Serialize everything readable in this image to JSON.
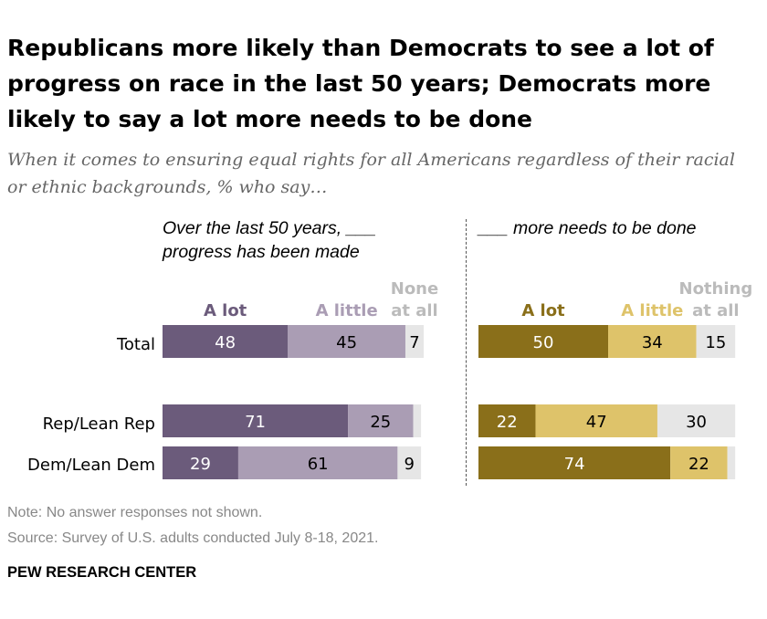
{
  "title": "Republicans more likely than Democrats to see a lot of progress on race in the last 50 years; Democrats more likely to say a lot more needs to be done",
  "subtitle": "When it comes to ensuring equal rights for all Americans regardless of their racial or ethnic backgrounds, % who say…",
  "note": "Note: No answer responses not shown.",
  "source": "Source: Survey of U.S. adults conducted July 8-18, 2021.",
  "brand": "PEW RESEARCH CENTER",
  "colors": {
    "left": [
      "#6b5b7b",
      "#aa9db4",
      "#e6e6e6"
    ],
    "right": [
      "#8a6f1a",
      "#dec36a",
      "#e6e6e6"
    ],
    "left_cat_text": [
      "#6b5b7b",
      "#aa9db4",
      "#bbbbbb"
    ],
    "right_cat_text": [
      "#8a6f1a",
      "#dec36a",
      "#bbbbbb"
    ]
  },
  "chart_data": [
    {
      "type": "bar",
      "orientation": "horizontal",
      "stacked": true,
      "title": "Over the last 50 years, ___ progress has been made",
      "title_lines": [
        "Over the last 50 years, ___",
        "progress has been made"
      ],
      "categories": [
        "Total",
        "Rep/Lean Rep",
        "Dem/Lean Dem"
      ],
      "series": [
        {
          "name": "A lot",
          "name_lines": [
            "A lot"
          ],
          "values": [
            48,
            71,
            29
          ]
        },
        {
          "name": "A little",
          "name_lines": [
            "A little"
          ],
          "values": [
            45,
            25,
            61
          ]
        },
        {
          "name": "None at all",
          "name_lines": [
            "None",
            "at all"
          ],
          "values": [
            7,
            3,
            9
          ]
        }
      ],
      "data_labels": [
        [
          "48",
          "71",
          "29"
        ],
        [
          "45",
          "25",
          "61"
        ],
        [
          "7",
          "",
          "9"
        ]
      ],
      "xlim": [
        0,
        100
      ]
    },
    {
      "type": "bar",
      "orientation": "horizontal",
      "stacked": true,
      "title": "___ more needs to be done",
      "title_lines": [
        "___ more needs to be done"
      ],
      "categories": [
        "Total",
        "Rep/Lean Rep",
        "Dem/Lean Dem"
      ],
      "series": [
        {
          "name": "A lot",
          "name_lines": [
            "A lot"
          ],
          "values": [
            50,
            22,
            74
          ]
        },
        {
          "name": "A little",
          "name_lines": [
            "A little"
          ],
          "values": [
            34,
            47,
            22
          ]
        },
        {
          "name": "Nothing at all",
          "name_lines": [
            "Nothing",
            "at all"
          ],
          "values": [
            15,
            30,
            3
          ]
        }
      ],
      "data_labels": [
        [
          "50",
          "22",
          "74"
        ],
        [
          "34",
          "47",
          "22"
        ],
        [
          "15",
          "30",
          ""
        ]
      ],
      "xlim": [
        0,
        100
      ]
    }
  ]
}
